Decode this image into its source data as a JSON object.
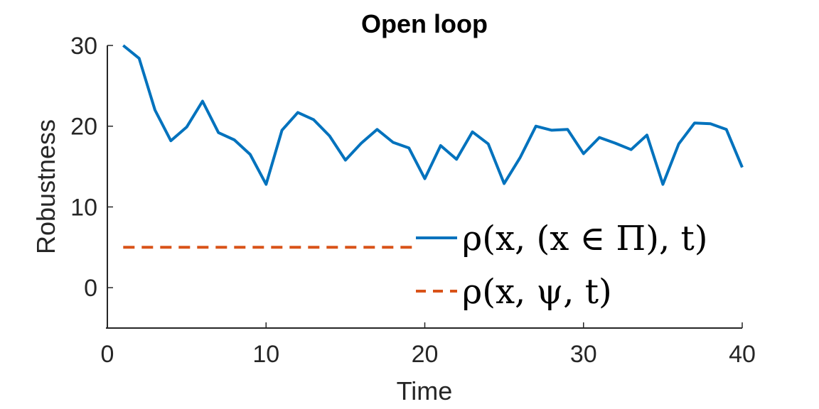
{
  "chart_data": {
    "type": "line",
    "title": "Open loop",
    "xlabel": "Time",
    "ylabel": "Robustness",
    "xlim": [
      0,
      40
    ],
    "ylim": [
      -5,
      30
    ],
    "xticks": [
      0,
      10,
      20,
      30,
      40
    ],
    "yticks": [
      0,
      10,
      20,
      30
    ],
    "grid": false,
    "legend_position": "bottom-right",
    "series": [
      {
        "name": "ρ(x, (x ∈ Π), t)",
        "color": "#0072BD",
        "style": "solid",
        "x": [
          1,
          2,
          3,
          4,
          5,
          6,
          7,
          8,
          9,
          10,
          11,
          12,
          13,
          14,
          15,
          16,
          17,
          18,
          19,
          20,
          21,
          22,
          23,
          24,
          25,
          26,
          27,
          28,
          29,
          30,
          31,
          32,
          33,
          34,
          35,
          36,
          37,
          38,
          39,
          40
        ],
        "y": [
          30,
          28.4,
          22,
          18.2,
          19.9,
          23.1,
          19.2,
          18.3,
          16.5,
          12.8,
          19.5,
          21.7,
          20.8,
          18.8,
          15.8,
          17.9,
          19.6,
          18,
          17.3,
          13.5,
          17.6,
          15.9,
          19.3,
          17.8,
          12.9,
          16.1,
          20,
          19.5,
          19.6,
          16.6,
          18.6,
          17.9,
          17.1,
          18.9,
          12.8,
          17.8,
          20.4,
          20.3,
          19.6,
          14.9
        ]
      },
      {
        "name": "ρ(x, ψ, t)",
        "color": "#D95319",
        "style": "dashed",
        "x": [
          1,
          19.2
        ],
        "y": [
          5,
          5
        ]
      }
    ]
  }
}
